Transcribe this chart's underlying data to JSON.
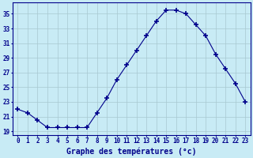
{
  "hours": [
    0,
    1,
    2,
    3,
    4,
    5,
    6,
    7,
    8,
    9,
    10,
    11,
    12,
    13,
    14,
    15,
    16,
    17,
    18,
    19,
    20,
    21,
    22,
    23
  ],
  "temps": [
    22,
    21.5,
    20.5,
    19.5,
    19.5,
    19.5,
    19.5,
    19.5,
    21.5,
    23.5,
    26,
    28,
    30,
    32,
    34,
    35.5,
    35.5,
    35,
    33.5,
    32,
    29.5,
    27.5,
    25.5,
    23
  ],
  "line_color": "#00008B",
  "marker": "+",
  "marker_size": 4,
  "bg_color": "#C8EBF5",
  "grid_color": "#A8C8D0",
  "xlabel": "Graphe des températures (°c)",
  "ylabel_ticks": [
    19,
    21,
    23,
    25,
    27,
    29,
    31,
    33,
    35
  ],
  "ylim": [
    18.5,
    36.5
  ],
  "xlim": [
    -0.5,
    23.5
  ],
  "xtick_labels": [
    "0",
    "1",
    "2",
    "3",
    "4",
    "5",
    "6",
    "7",
    "8",
    "9",
    "10",
    "11",
    "12",
    "13",
    "14",
    "15",
    "16",
    "17",
    "18",
    "19",
    "20",
    "21",
    "22",
    "23"
  ],
  "tick_color": "#00008B",
  "tick_fontsize": 5.5,
  "label_fontsize": 7
}
